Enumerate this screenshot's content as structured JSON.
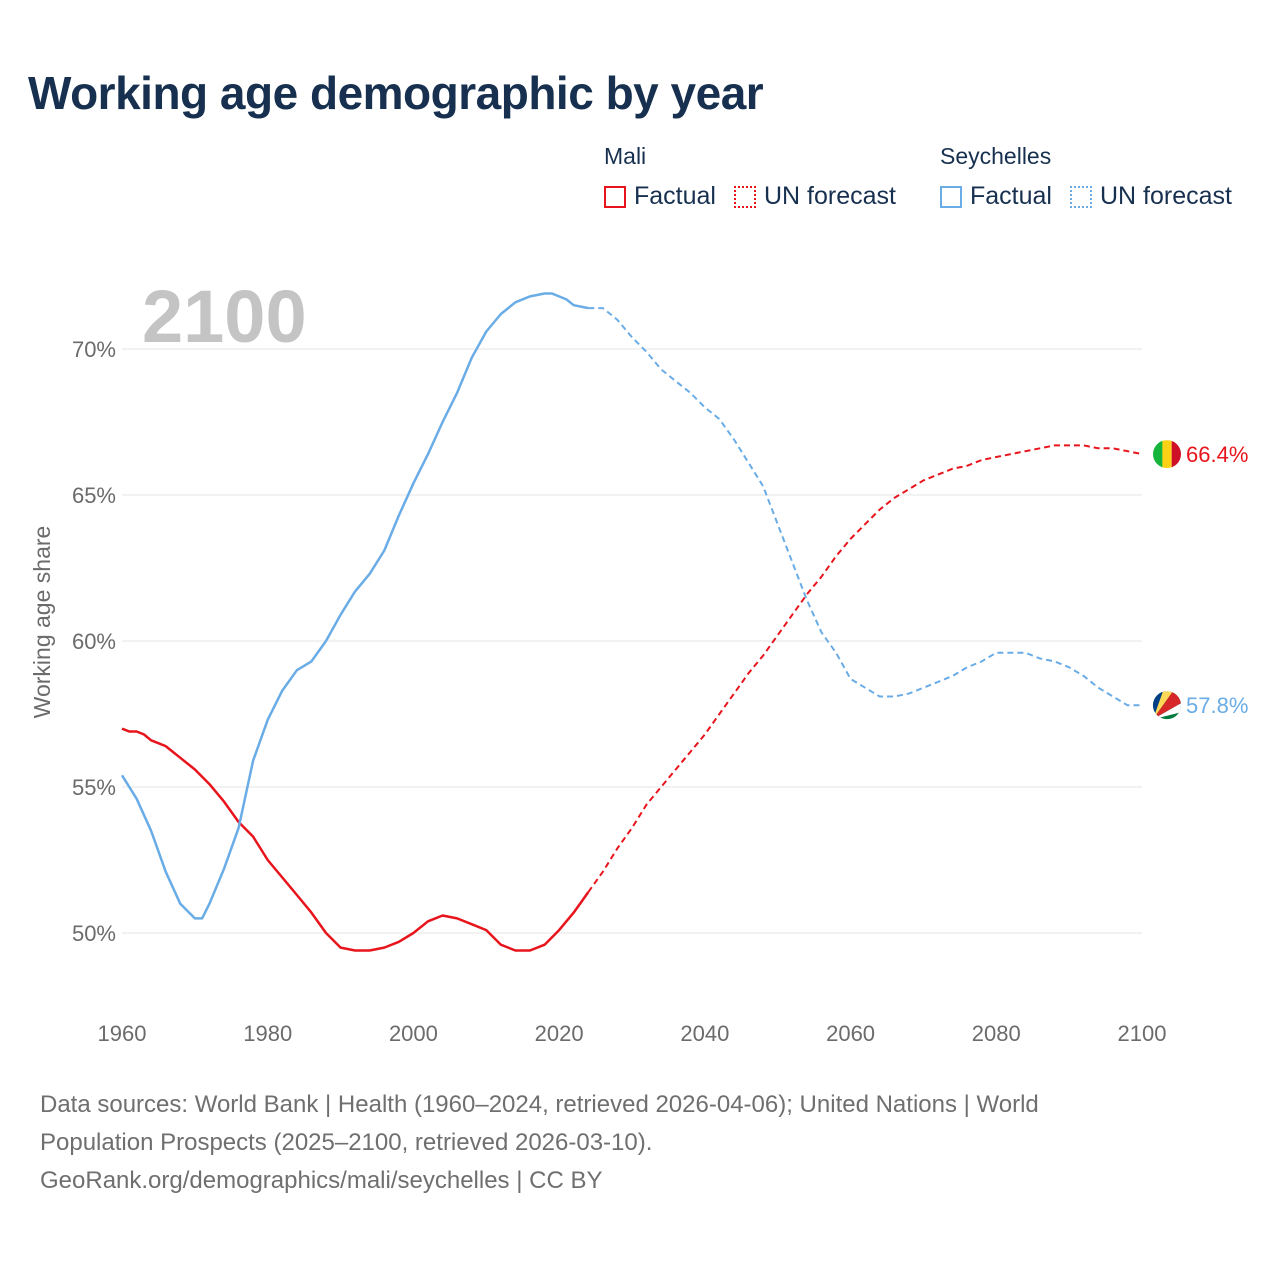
{
  "title": "Working age demographic by year",
  "legend": {
    "groups": [
      {
        "country": "Mali",
        "color": "#e8141c",
        "items": [
          {
            "label": "Factual",
            "style": "solid"
          },
          {
            "label": "UN forecast",
            "style": "dotted"
          }
        ]
      },
      {
        "country": "Seychelles",
        "color": "#6aace6",
        "items": [
          {
            "label": "Factual",
            "style": "solid"
          },
          {
            "label": "UN forecast",
            "style": "dotted"
          }
        ]
      }
    ]
  },
  "sources": {
    "line1": "Data sources: World Bank | Health (1960–2024, retrieved 2026-04-06); United Nations | World",
    "line2": "Population Prospects (2025–2100, retrieved 2026-03-10).",
    "line3": "GeoRank.org/demographics/mali/seychelles | CC BY"
  },
  "chart_data": {
    "type": "line",
    "year_label": "2100",
    "ylabel": "Working age share",
    "xlim": [
      1960,
      2103
    ],
    "ylim": [
      47,
      73
    ],
    "x_ticks": [
      "1960",
      "1980",
      "2000",
      "2020",
      "2040",
      "2060",
      "2080",
      "2100"
    ],
    "y_ticks": [
      {
        "value": 50,
        "label": "50%"
      },
      {
        "value": 55,
        "label": "55%"
      },
      {
        "value": 60,
        "label": "60%"
      },
      {
        "value": 65,
        "label": "65%"
      },
      {
        "value": 70,
        "label": "70%"
      }
    ],
    "forecast_start": 2024,
    "series": [
      {
        "name": "Mali",
        "color": "#e8141c",
        "end_label": "66.4%",
        "flag": "mali-flag",
        "x": [
          1960,
          1961,
          1962,
          1963,
          1964,
          1965,
          1966,
          1967,
          1968,
          1970,
          1972,
          1974,
          1976,
          1978,
          1980,
          1982,
          1984,
          1986,
          1988,
          1990,
          1992,
          1994,
          1996,
          1998,
          2000,
          2002,
          2004,
          2006,
          2008,
          2010,
          2012,
          2014,
          2016,
          2018,
          2020,
          2022,
          2024,
          2026,
          2028,
          2030,
          2032,
          2034,
          2036,
          2038,
          2040,
          2042,
          2044,
          2046,
          2048,
          2050,
          2052,
          2054,
          2056,
          2058,
          2060,
          2062,
          2064,
          2066,
          2068,
          2070,
          2072,
          2074,
          2076,
          2078,
          2080,
          2082,
          2084,
          2086,
          2088,
          2090,
          2092,
          2094,
          2096,
          2098,
          2100
        ],
        "values": [
          57.0,
          56.9,
          56.9,
          56.8,
          56.6,
          56.5,
          56.4,
          56.2,
          56.0,
          55.6,
          55.1,
          54.5,
          53.8,
          53.3,
          52.5,
          51.9,
          51.3,
          50.7,
          50.0,
          49.5,
          49.4,
          49.4,
          49.5,
          49.7,
          50.0,
          50.4,
          50.6,
          50.5,
          50.3,
          50.1,
          49.6,
          49.4,
          49.4,
          49.6,
          50.1,
          50.7,
          51.4,
          52.1,
          52.9,
          53.6,
          54.4,
          55.0,
          55.6,
          56.2,
          56.8,
          57.5,
          58.2,
          58.9,
          59.5,
          60.2,
          60.9,
          61.6,
          62.2,
          62.9,
          63.5,
          64.0,
          64.5,
          64.9,
          65.2,
          65.5,
          65.7,
          65.9,
          66.0,
          66.2,
          66.3,
          66.4,
          66.5,
          66.6,
          66.7,
          66.7,
          66.7,
          66.6,
          66.6,
          66.5,
          66.4
        ]
      },
      {
        "name": "Seychelles",
        "color": "#6aace6",
        "end_label": "57.8%",
        "flag": "seychelles-flag",
        "x": [
          1960,
          1962,
          1964,
          1966,
          1968,
          1970,
          1971,
          1972,
          1974,
          1976,
          1978,
          1980,
          1982,
          1984,
          1986,
          1988,
          1990,
          1992,
          1994,
          1996,
          1998,
          2000,
          2002,
          2004,
          2006,
          2008,
          2010,
          2012,
          2014,
          2016,
          2018,
          2019,
          2020,
          2021,
          2022,
          2024,
          2026,
          2028,
          2030,
          2032,
          2034,
          2036,
          2038,
          2040,
          2042,
          2044,
          2046,
          2048,
          2050,
          2052,
          2054,
          2056,
          2058,
          2060,
          2062,
          2064,
          2066,
          2068,
          2070,
          2072,
          2074,
          2076,
          2078,
          2080,
          2082,
          2084,
          2086,
          2088,
          2090,
          2092,
          2094,
          2096,
          2098,
          2100
        ],
        "values": [
          55.4,
          54.6,
          53.5,
          52.1,
          51.0,
          50.5,
          50.5,
          51.0,
          52.2,
          53.6,
          55.9,
          57.3,
          58.3,
          59.0,
          59.3,
          60.0,
          60.9,
          61.7,
          62.3,
          63.1,
          64.3,
          65.4,
          66.4,
          67.5,
          68.5,
          69.7,
          70.6,
          71.2,
          71.6,
          71.8,
          71.9,
          71.9,
          71.8,
          71.7,
          71.5,
          71.4,
          71.4,
          71.0,
          70.4,
          69.9,
          69.3,
          68.9,
          68.5,
          68.0,
          67.6,
          66.9,
          66.1,
          65.3,
          64.0,
          62.7,
          61.4,
          60.3,
          59.6,
          58.7,
          58.4,
          58.1,
          58.1,
          58.2,
          58.4,
          58.6,
          58.8,
          59.1,
          59.3,
          59.6,
          59.6,
          59.6,
          59.4,
          59.3,
          59.1,
          58.8,
          58.4,
          58.1,
          57.8,
          57.8
        ]
      }
    ]
  }
}
